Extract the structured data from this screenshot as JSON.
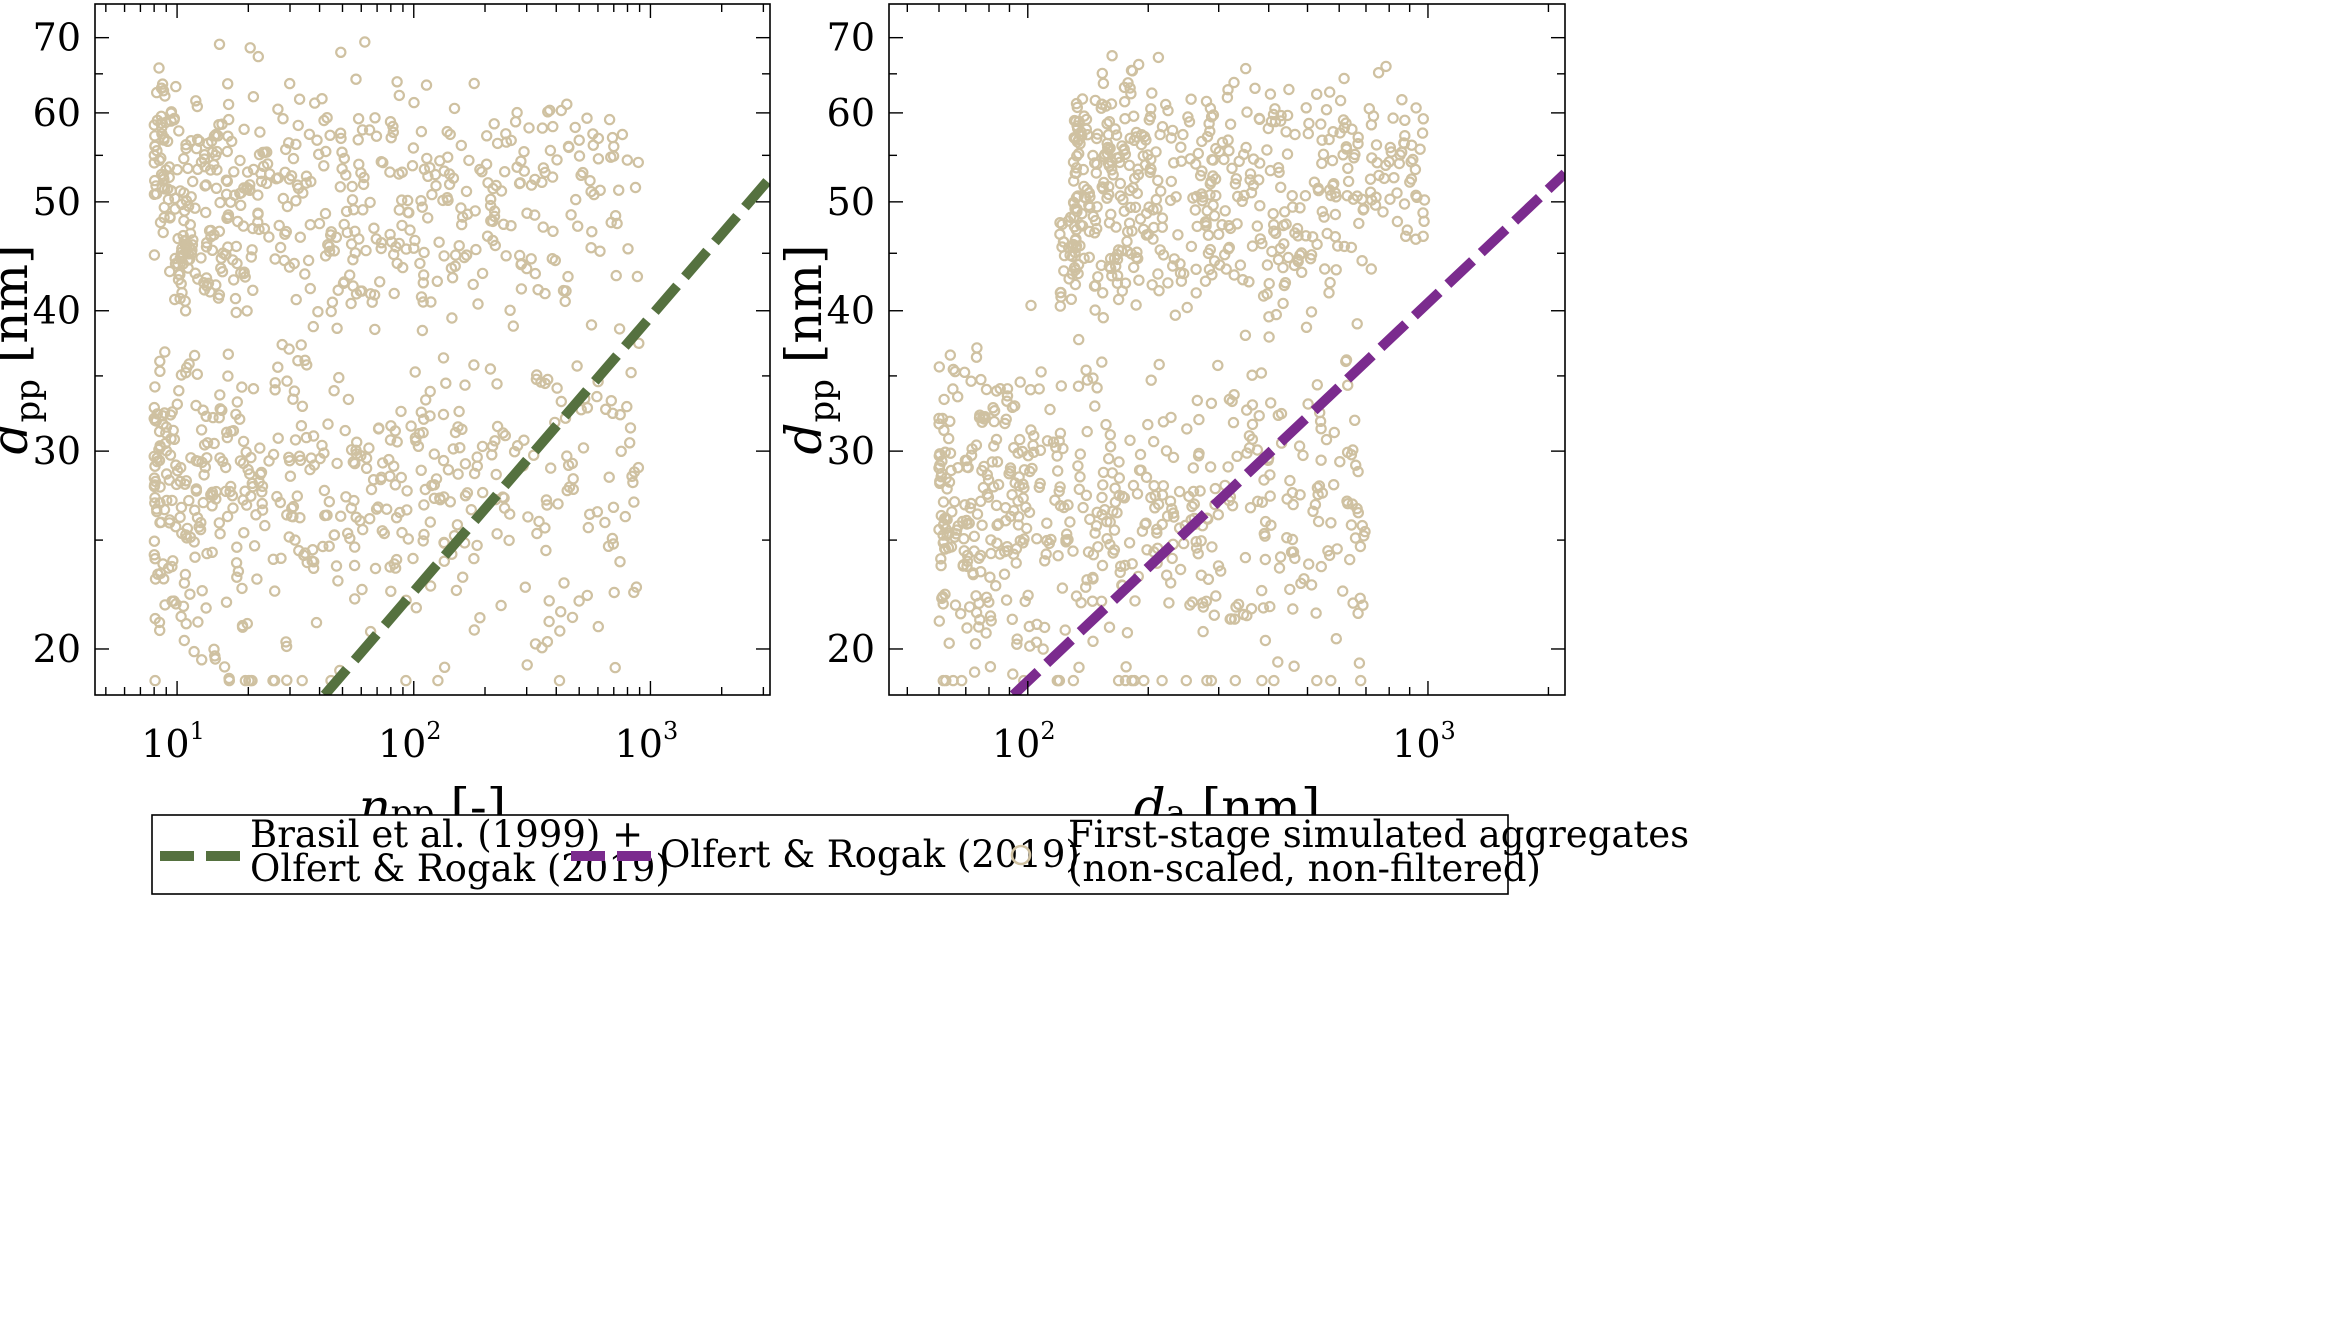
{
  "chart_data": [
    {
      "type": "scatter",
      "x_scale": "log",
      "y_scale": "log",
      "xlim": [
        4.5,
        3200
      ],
      "ylim": [
        18.2,
        75
      ],
      "x_ticks": [
        {
          "base": "10",
          "exp": "1",
          "value": 10
        },
        {
          "base": "10",
          "exp": "2",
          "value": 100
        },
        {
          "base": "10",
          "exp": "3",
          "value": 1000
        }
      ],
      "y_ticks": [
        "20",
        "30",
        "40",
        "50",
        "60",
        "70"
      ],
      "xlabel": {
        "main": "n",
        "sub": "pp",
        "unit": "[-]"
      },
      "ylabel": {
        "main": "d",
        "sub": "pp",
        "unit": "[nm]"
      },
      "grid": false,
      "fit_line": {
        "name_ref": "brasil",
        "color": "#55713f",
        "points": [
          [
            42,
            18.2
          ],
          [
            3200,
            52.5
          ]
        ]
      },
      "scatter_color": "#cfc1a1",
      "series": [
        {
          "name_ref": "aggregates",
          "clusters": [
            {
              "x_range": [
                8,
                900
              ],
              "y_center": 28,
              "y_spread": 4.5,
              "count": 520
            },
            {
              "x_range": [
                8,
                900
              ],
              "y_center": 53.5,
              "y_spread": 5,
              "count": 380
            },
            {
              "x_range": [
                10,
                500
              ],
              "y_center": 44,
              "y_spread": 2.5,
              "count": 160
            }
          ]
        }
      ]
    },
    {
      "type": "scatter",
      "x_scale": "log",
      "y_scale": "log",
      "xlim": [
        45,
        2200
      ],
      "ylim": [
        18.2,
        75
      ],
      "x_ticks": [
        {
          "base": "10",
          "exp": "2",
          "value": 100
        },
        {
          "base": "10",
          "exp": "3",
          "value": 1000
        }
      ],
      "y_ticks": [
        "20",
        "30",
        "40",
        "50",
        "60",
        "70"
      ],
      "xlabel": {
        "main": "d",
        "sub": "a",
        "unit": "[nm]"
      },
      "ylabel": {
        "main": "d",
        "sub": "pp",
        "unit": "[nm]"
      },
      "grid": false,
      "fit_line": {
        "name_ref": "olfert",
        "color": "#7b2b8e",
        "points": [
          [
            92,
            18.2
          ],
          [
            2200,
            53
          ]
        ]
      },
      "scatter_color": "#cfc1a1",
      "series": [
        {
          "name_ref": "aggregates",
          "clusters": [
            {
              "x_range": [
                60,
                700
              ],
              "y_center": 26.5,
              "y_spread": 4.5,
              "count": 560
            },
            {
              "x_range": [
                130,
                1000
              ],
              "y_center": 54,
              "y_spread": 5,
              "count": 380
            },
            {
              "x_range": [
                120,
                600
              ],
              "y_center": 44.5,
              "y_spread": 2.5,
              "count": 150
            }
          ]
        }
      ]
    }
  ],
  "legend": {
    "placement": "bottom-center",
    "entries": [
      {
        "id": "brasil",
        "lines": [
          "Brasil et al. (1999) +",
          "Olfert & Rogak (2019)"
        ],
        "color": "#55713f",
        "style": "dashed-line"
      },
      {
        "id": "olfert",
        "lines": [
          "Olfert & Rogak (2019)"
        ],
        "color": "#7b2b8e",
        "style": "dashed-line"
      },
      {
        "id": "aggregates",
        "lines": [
          "First-stage simulated aggregates",
          "(non-scaled, non-filtered)"
        ],
        "color": "#cfc1a1",
        "style": "open-circle"
      }
    ]
  }
}
